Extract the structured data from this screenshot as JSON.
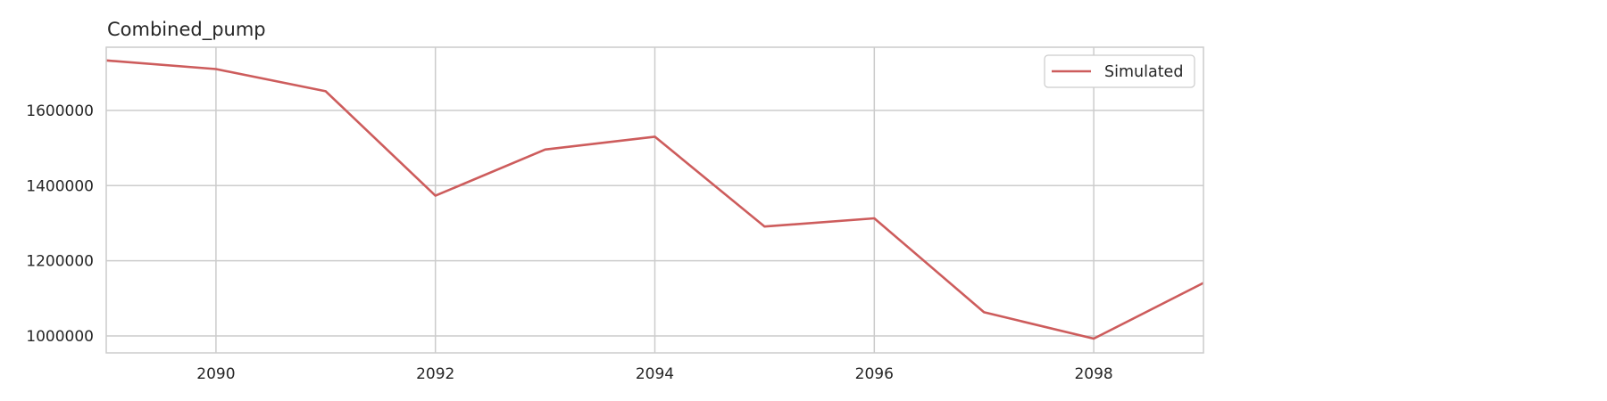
{
  "chart_data": {
    "type": "line",
    "title": "Combined_pump",
    "xlabel": "",
    "ylabel": "",
    "x": [
      2089,
      2090,
      2091,
      2092,
      2093,
      2094,
      2095,
      2096,
      2097,
      2098,
      2099
    ],
    "series": [
      {
        "name": "Simulated",
        "color": "#cd5c5c",
        "values": [
          1733000,
          1710000,
          1651000,
          1373000,
          1496000,
          1530000,
          1291000,
          1313000,
          1063000,
          993000,
          1141000
        ]
      }
    ],
    "xlim": [
      2089,
      2099
    ],
    "ylim": [
      955000,
      1768000
    ],
    "xticks": [
      2090,
      2092,
      2094,
      2096,
      2098
    ],
    "yticks": [
      1000000,
      1200000,
      1400000,
      1600000
    ],
    "grid": true,
    "legend_position": "top-right"
  }
}
